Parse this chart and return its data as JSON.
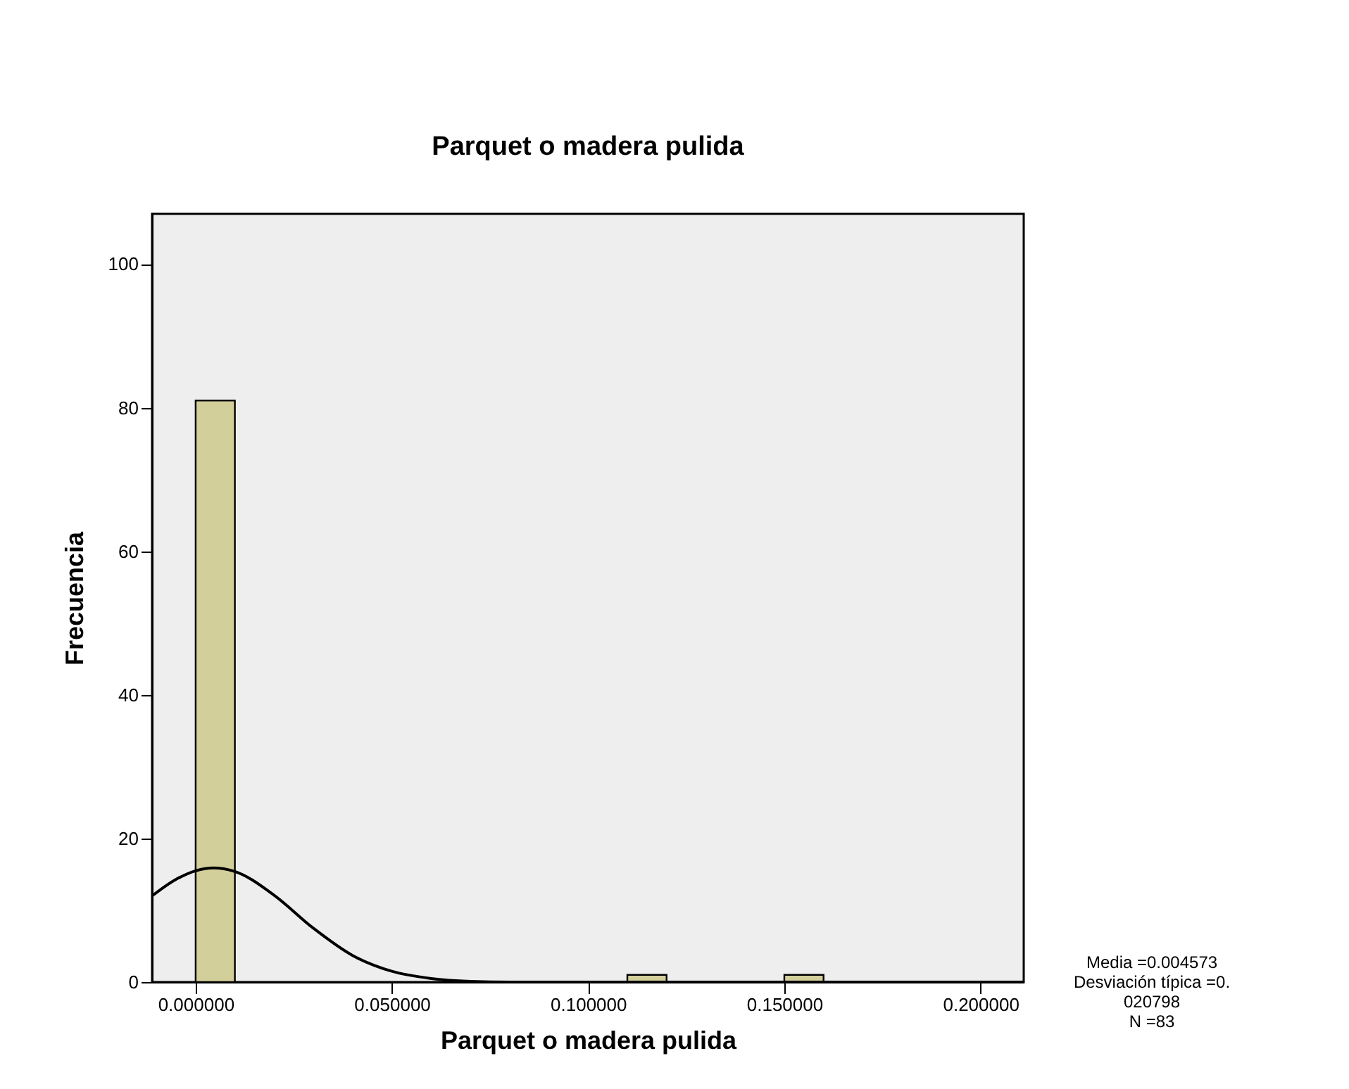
{
  "chart_data": {
    "type": "histogram",
    "title": "Parquet o madera pulida",
    "xlabel": "Parquet o madera pulida",
    "ylabel": "Frecuencia",
    "series": [
      {
        "color": "#d3cf9b",
        "bins": [
          0,
          0.01,
          0.02,
          0.03,
          0.04,
          0.05,
          0.06,
          0.07,
          0.08,
          0.09,
          0.1,
          0.11,
          0.12,
          0.13,
          0.14,
          0.15,
          0.16
        ],
        "values": [
          81,
          0,
          0,
          0,
          0,
          0,
          0,
          0,
          0,
          0,
          0,
          1,
          0,
          0,
          0,
          1
        ]
      },
      {
        "type": "line",
        "color": "#000000",
        "x": [
          -0.0111,
          -0.005,
          0,
          0.004573,
          0.01,
          0.02,
          0.03,
          0.04,
          0.05,
          0.06,
          0.07,
          0.08,
          0.1,
          0.15,
          0.2,
          0.211
        ],
        "values": [
          12.0,
          14.3,
          15.5,
          15.9,
          15.4,
          12.1,
          7.5,
          3.7,
          1.5,
          0.5,
          0.1,
          0.0,
          0.0,
          0.0,
          0.0,
          0.0
        ]
      }
    ],
    "xlim": [
      -0.0111,
      0.211
    ],
    "ylim": [
      0,
      107
    ],
    "xticks": [
      {
        "value": 0,
        "label": "0.000000"
      },
      {
        "value": 0.05,
        "label": "0.050000"
      },
      {
        "value": 0.1,
        "label": "0.100000"
      },
      {
        "value": 0.15,
        "label": "0.150000"
      },
      {
        "value": 0.2,
        "label": "0.200000"
      }
    ],
    "yticks": [
      0,
      20,
      40,
      60,
      80,
      100
    ],
    "grid": false,
    "annotations": [
      "Media =0.004573\nDesviación típica =0.\n020798\nN =83"
    ]
  }
}
